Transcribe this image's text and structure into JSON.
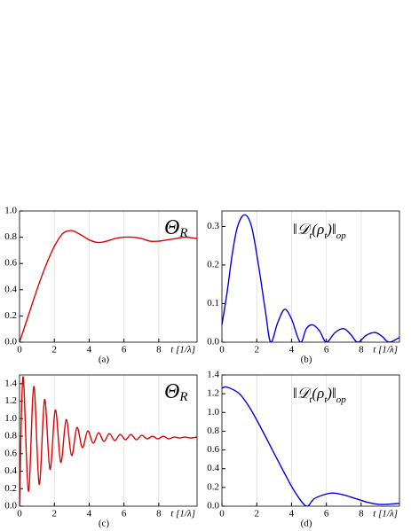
{
  "chart_data": [
    {
      "type": "line",
      "caption": "(a)",
      "xlabel": "t [1/λ]",
      "annotation": [
        "Θ",
        "R"
      ],
      "xlim": [
        0,
        10.2
      ],
      "xticks": [
        0,
        2,
        4,
        6,
        8
      ],
      "ylim": [
        0,
        1.0
      ],
      "yticks": [
        {
          "value": 0,
          "label": "0.0"
        },
        {
          "value": 0.2,
          "label": "0.2"
        },
        {
          "value": 0.4,
          "label": "0.4"
        },
        {
          "value": 0.6,
          "label": "0.6"
        },
        {
          "value": 0.8,
          "label": "0.8"
        },
        {
          "value": 1.0,
          "label": "1.0"
        }
      ],
      "grid": true,
      "series": [
        {
          "color": "#e00000",
          "x": [
            0,
            0.5,
            1,
            1.5,
            2,
            2.5,
            3,
            3.5,
            4,
            4.5,
            5,
            5.5,
            6,
            6.5,
            7,
            7.5,
            8,
            8.5,
            9,
            9.5,
            10.2
          ],
          "values": [
            0,
            0.2,
            0.4,
            0.58,
            0.73,
            0.83,
            0.85,
            0.82,
            0.78,
            0.76,
            0.77,
            0.79,
            0.8,
            0.8,
            0.79,
            0.77,
            0.77,
            0.78,
            0.79,
            0.8,
            0.79
          ]
        }
      ]
    },
    {
      "type": "line",
      "caption": "(b)",
      "xlabel": "t [1/λ]",
      "annotation": [
        "‖𝒟",
        "t",
        "(ρ",
        "t",
        ")‖",
        "op"
      ],
      "xlim": [
        0,
        10.2
      ],
      "xticks": [
        0,
        2,
        4,
        6,
        8
      ],
      "ylim": [
        0,
        0.34
      ],
      "yticks": [
        {
          "value": 0,
          "label": "0.0"
        },
        {
          "value": 0.1,
          "label": "0.1"
        },
        {
          "value": 0.2,
          "label": "0.2"
        },
        {
          "value": 0.3,
          "label": "0.3"
        }
      ],
      "grid": true,
      "series": [
        {
          "color": "#0000e0",
          "x": [
            0,
            0.3,
            0.6,
            0.9,
            1.3,
            1.7,
            2.1,
            2.5,
            2.8,
            3.2,
            3.6,
            4.0,
            4.5,
            4.85,
            5.2,
            5.6,
            6.0,
            6.5,
            7.0,
            7.4,
            7.8,
            8.3,
            8.8,
            9.2,
            9.6,
            10.2
          ],
          "values": [
            0.045,
            0.13,
            0.23,
            0.3,
            0.33,
            0.3,
            0.2,
            0.08,
            0,
            0.05,
            0.085,
            0.06,
            0,
            0.035,
            0.045,
            0.03,
            0,
            0.025,
            0.035,
            0.02,
            0,
            0.018,
            0.025,
            0.015,
            0,
            0.012
          ]
        }
      ]
    },
    {
      "type": "line",
      "caption": "(c)",
      "xlabel": "t [1/λ]",
      "annotation": [
        "Θ",
        "R"
      ],
      "xlim": [
        0,
        10.2
      ],
      "xticks": [
        0,
        2,
        4,
        6,
        8
      ],
      "ylim": [
        0,
        1.5
      ],
      "yticks": [
        {
          "value": 0,
          "label": "0.0"
        },
        {
          "value": 0.2,
          "label": "0.2"
        },
        {
          "value": 0.4,
          "label": "0.4"
        },
        {
          "value": 0.6,
          "label": "0.6"
        },
        {
          "value": 0.8,
          "label": "0.8"
        },
        {
          "value": 1.0,
          "label": "1.0"
        },
        {
          "value": 1.2,
          "label": "1.2"
        },
        {
          "value": 1.4,
          "label": "1.4"
        }
      ],
      "grid": true,
      "series": [
        {
          "color": "#e00000",
          "x": [
            0,
            0.2,
            0.51,
            0.82,
            1.13,
            1.44,
            1.75,
            2.06,
            2.37,
            2.68,
            2.99,
            3.3,
            3.61,
            3.92,
            4.23,
            4.54,
            4.85,
            5.16,
            5.47,
            5.78,
            6.09,
            6.4,
            6.71,
            7.02,
            7.33,
            7.64,
            7.95,
            8.26,
            8.57,
            8.88,
            9.19,
            9.5,
            9.81,
            10.2
          ],
          "values": [
            0,
            1.48,
            0.17,
            1.37,
            0.25,
            1.22,
            0.42,
            1.1,
            0.5,
            0.99,
            0.58,
            0.9,
            0.67,
            0.86,
            0.72,
            0.84,
            0.74,
            0.83,
            0.75,
            0.82,
            0.76,
            0.82,
            0.76,
            0.81,
            0.77,
            0.8,
            0.77,
            0.8,
            0.77,
            0.79,
            0.78,
            0.79,
            0.78,
            0.79
          ]
        }
      ]
    },
    {
      "type": "line",
      "caption": "(d)",
      "xlabel": "t [1/λ]",
      "annotation": [
        "‖𝒟",
        "t",
        "(ρ",
        "t",
        ")‖",
        "op"
      ],
      "xlim": [
        0,
        10.2
      ],
      "xticks": [
        0,
        2,
        4,
        6,
        8
      ],
      "ylim": [
        0,
        1.4
      ],
      "yticks": [
        {
          "value": 0,
          "label": "0.0"
        },
        {
          "value": 0.2,
          "label": "0.2"
        },
        {
          "value": 0.4,
          "label": "0.4"
        },
        {
          "value": 0.6,
          "label": "0.6"
        },
        {
          "value": 0.8,
          "label": "0.8"
        },
        {
          "value": 1.0,
          "label": "1.0"
        },
        {
          "value": 1.2,
          "label": "1.2"
        },
        {
          "value": 1.4,
          "label": "1.4"
        }
      ],
      "grid": true,
      "series": [
        {
          "color": "#0000e0",
          "x": [
            0,
            0.3,
            1,
            1.6,
            2.2,
            2.9,
            3.6,
            4.2,
            4.85,
            5.3,
            6,
            6.4,
            7,
            7.7,
            8.4,
            9,
            9.5,
            10.2
          ],
          "values": [
            1.26,
            1.27,
            1.2,
            1.05,
            0.85,
            0.6,
            0.35,
            0.15,
            0,
            0.08,
            0.13,
            0.14,
            0.12,
            0.08,
            0.04,
            0.02,
            0.02,
            0.03
          ]
        }
      ]
    }
  ]
}
